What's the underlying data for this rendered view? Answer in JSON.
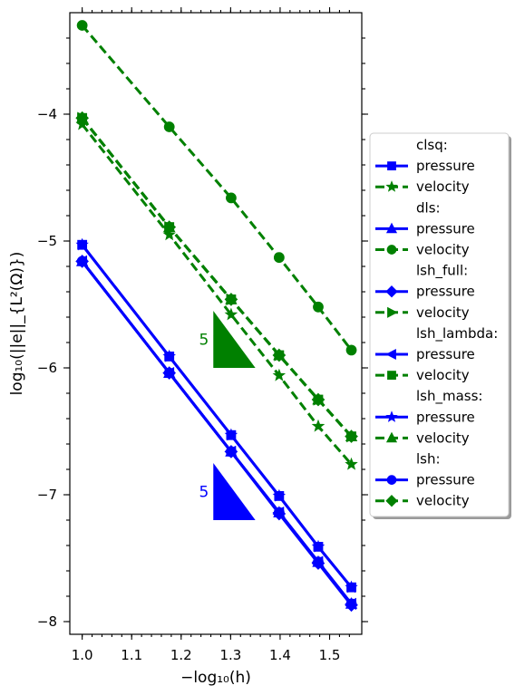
{
  "chart_data": {
    "type": "line",
    "title": "",
    "xlabel": "−log₁₀(h)",
    "ylabel": "log₁₀(||e||_{L²(Ω)})",
    "xlim": [
      0.975,
      1.565
    ],
    "ylim": [
      -8.1,
      -3.2
    ],
    "x_ticks": [
      "1.0",
      "1.1",
      "1.2",
      "1.3",
      "1.4",
      "1.5"
    ],
    "y_ticks": [
      "−4",
      "−5",
      "−6",
      "−7",
      "−8"
    ],
    "grid": false,
    "legend_position": "right",
    "x": [
      1.0,
      1.176,
      1.301,
      1.398,
      1.477,
      1.544
    ],
    "groups": [
      {
        "name": "clsq:",
        "series": [
          {
            "name": "pressure",
            "color": "#0000ff",
            "linestyle": "solid",
            "marker": "square",
            "values": [
              -5.03,
              -5.91,
              -6.53,
              -7.01,
              -7.41,
              -7.73
            ]
          },
          {
            "name": "velocity",
            "color": "#008000",
            "linestyle": "dashed",
            "marker": "star",
            "values": [
              -4.08,
              -4.95,
              -5.58,
              -6.06,
              -6.46,
              -6.76
            ]
          }
        ]
      },
      {
        "name": "dls:",
        "series": [
          {
            "name": "pressure",
            "color": "#0000ff",
            "linestyle": "solid",
            "marker": "triangle-up",
            "values": [
              -5.16,
              -6.04,
              -6.66,
              -7.14,
              -7.53,
              -7.86
            ]
          },
          {
            "name": "velocity",
            "color": "#008000",
            "linestyle": "dashed",
            "marker": "circle",
            "values": [
              -3.3,
              -4.1,
              -4.66,
              -5.13,
              -5.52,
              -5.86
            ]
          }
        ]
      },
      {
        "name": "lsh_full:",
        "series": [
          {
            "name": "pressure",
            "color": "#0000ff",
            "linestyle": "solid",
            "marker": "diamond",
            "values": [
              -5.16,
              -6.04,
              -6.66,
              -7.15,
              -7.54,
              -7.87
            ]
          },
          {
            "name": "velocity",
            "color": "#008000",
            "linestyle": "dashed",
            "marker": "triangle-right",
            "values": [
              -4.03,
              -4.89,
              -5.46,
              -5.9,
              -6.25,
              -6.54
            ]
          }
        ]
      },
      {
        "name": "lsh_lambda:",
        "series": [
          {
            "name": "pressure",
            "color": "#0000ff",
            "linestyle": "solid",
            "marker": "triangle-left",
            "values": [
              -5.16,
              -6.04,
              -6.66,
              -7.14,
              -7.53,
              -7.86
            ]
          },
          {
            "name": "velocity",
            "color": "#008000",
            "linestyle": "dashed",
            "marker": "square",
            "values": [
              -4.03,
              -4.89,
              -5.46,
              -5.9,
              -6.25,
              -6.54
            ]
          }
        ]
      },
      {
        "name": "lsh_mass:",
        "series": [
          {
            "name": "pressure",
            "color": "#0000ff",
            "linestyle": "solid",
            "marker": "star",
            "values": [
              -5.03,
              -5.91,
              -6.53,
              -7.01,
              -7.41,
              -7.73
            ]
          },
          {
            "name": "velocity",
            "color": "#008000",
            "linestyle": "dashed",
            "marker": "triangle-up",
            "values": [
              -4.03,
              -4.89,
              -5.46,
              -5.9,
              -6.25,
              -6.54
            ]
          }
        ]
      },
      {
        "name": "lsh:",
        "series": [
          {
            "name": "pressure",
            "color": "#0000ff",
            "linestyle": "solid",
            "marker": "circle",
            "values": [
              -5.16,
              -6.04,
              -6.66,
              -7.14,
              -7.53,
              -7.86
            ]
          },
          {
            "name": "velocity",
            "color": "#008000",
            "linestyle": "dashed",
            "marker": "diamond",
            "values": [
              -4.03,
              -4.89,
              -5.46,
              -5.9,
              -6.25,
              -6.54
            ]
          }
        ]
      }
    ],
    "annotations": [
      {
        "text": "5",
        "color": "#008000",
        "x0": 1.265,
        "x1": 1.35,
        "y_top": -5.55,
        "y_bottom": -6.0
      },
      {
        "text": "5",
        "color": "#0000ff",
        "x0": 1.265,
        "x1": 1.35,
        "y_top": -6.75,
        "y_bottom": -7.2
      }
    ]
  }
}
